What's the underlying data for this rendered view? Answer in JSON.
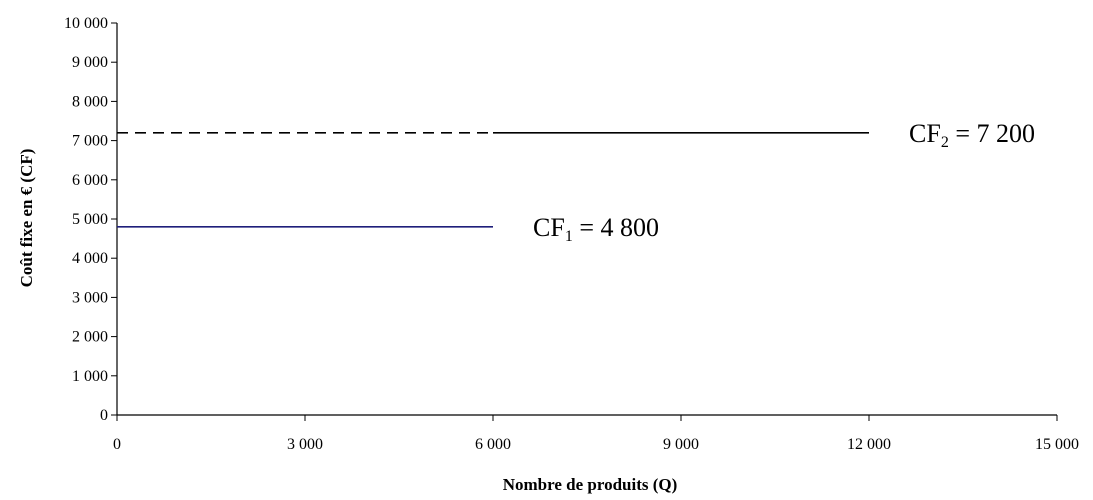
{
  "chart_data": {
    "type": "line",
    "xlabel": "Nombre  de  produits  (Q)",
    "ylabel": "Coût fixe en € (CF)",
    "xlim": [
      0,
      15000
    ],
    "ylim": [
      0,
      10000
    ],
    "x_ticks": [
      0,
      3000,
      6000,
      9000,
      12000,
      15000
    ],
    "x_tick_labels": [
      "0",
      "3 000",
      "6 000",
      "9 000",
      "12 000",
      "15 000"
    ],
    "y_ticks": [
      0,
      1000,
      2000,
      3000,
      4000,
      5000,
      6000,
      7000,
      8000,
      9000,
      10000
    ],
    "y_tick_labels": [
      "0",
      "1 000",
      "2 000",
      "3 000",
      "4 000",
      "5 000",
      "6 000",
      "7 000",
      "8 000",
      "9 000",
      "10 000"
    ],
    "grid": false,
    "series": [
      {
        "x": [
          0,
          6000
        ],
        "y": [
          4800,
          4800
        ],
        "color": "#1f1f7a",
        "style": "solid",
        "label_main": "CF",
        "label_sub": "1",
        "label_rest": " = 4 800"
      },
      {
        "x": [
          0,
          6000
        ],
        "y": [
          7200,
          7200
        ],
        "color": "#000000",
        "style": "dashed"
      },
      {
        "x": [
          6000,
          12000
        ],
        "y": [
          7200,
          7200
        ],
        "color": "#000000",
        "style": "solid",
        "label_main": "CF",
        "label_sub": "2",
        "label_rest": " = 7 200"
      }
    ]
  }
}
